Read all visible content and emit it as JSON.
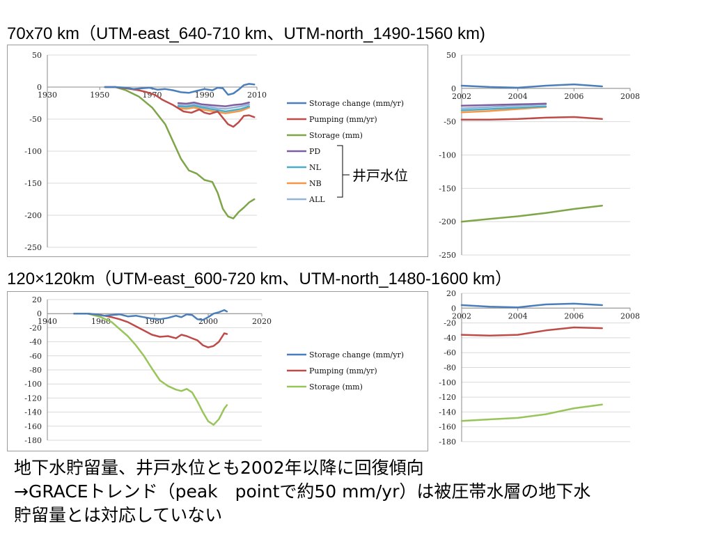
{
  "titles": {
    "top": "70x70 km（UTM-east_640-710 km、UTM-north_1490-1560 km)",
    "bottom": "120×120km（UTM-east_600-720 km、UTM-north_1480-1600 km）"
  },
  "well_label": "井戸水位",
  "summary": {
    "line1": "地下水貯留量、井戸水位とも2002年以降に回復傾向",
    "line2": "→GRACEトレンド（peak　pointで約50 mm/yr）は被圧帯水層の地下水",
    "line3": "貯留量とは対応していない"
  },
  "colors": {
    "storage_change": "#4a7ebb",
    "pumping": "#be4b48",
    "storage_top": "#7ea548",
    "storage_bottom": "#98c55a",
    "pd": "#7d5fa0",
    "nl": "#4bacc6",
    "nb": "#f79646",
    "all": "#95b3d7"
  },
  "chart_data": [
    {
      "type": "line",
      "id": "top-left",
      "xlim": [
        1930,
        2010
      ],
      "ylim": [
        -250,
        50
      ],
      "xticks": [
        1930,
        1950,
        1970,
        1990,
        2010
      ],
      "yticks": [
        50,
        0,
        -50,
        -100,
        -150,
        -200,
        -250
      ],
      "legend_position": "right",
      "series": [
        {
          "name": "Storage change (mm/yr)",
          "color": "storage_change",
          "x": [
            1952,
            1956,
            1960,
            1963,
            1966,
            1969,
            1972,
            1975,
            1978,
            1981,
            1984,
            1987,
            1990,
            1993,
            1995,
            1997,
            1999,
            2001,
            2003,
            2005,
            2007,
            2009
          ],
          "y": [
            0,
            0,
            -1,
            -3,
            -2,
            -1,
            -4,
            -3,
            -5,
            -8,
            -9,
            -6,
            -3,
            -5,
            -1,
            -2,
            -12,
            -10,
            -4,
            3,
            5,
            4
          ]
        },
        {
          "name": "Pumping (mm/yr)",
          "color": "pumping",
          "x": [
            1952,
            1956,
            1960,
            1965,
            1968,
            1971,
            1974,
            1978,
            1982,
            1985,
            1988,
            1990,
            1992,
            1995,
            1997,
            1999,
            2001,
            2003,
            2005,
            2007,
            2009
          ],
          "y": [
            0,
            0,
            -2,
            -5,
            -8,
            -12,
            -20,
            -28,
            -38,
            -40,
            -35,
            -40,
            -42,
            -38,
            -48,
            -58,
            -62,
            -55,
            -45,
            -44,
            -47
          ]
        },
        {
          "name": "Storage (mm)",
          "color": "storage_top",
          "x": [
            1952,
            1956,
            1960,
            1965,
            1970,
            1975,
            1978,
            1981,
            1984,
            1987,
            1990,
            1993,
            1995,
            1997,
            1999,
            2001,
            2003,
            2005,
            2007,
            2009
          ],
          "y": [
            0,
            0,
            -5,
            -15,
            -32,
            -58,
            -85,
            -112,
            -130,
            -135,
            -145,
            -148,
            -165,
            -190,
            -202,
            -205,
            -195,
            -188,
            -180,
            -175
          ]
        },
        {
          "name": "PD",
          "color": "pd",
          "x": [
            1980,
            1983,
            1986,
            1989,
            1992,
            1995,
            1998,
            2001,
            2004,
            2007
          ],
          "y": [
            -25,
            -26,
            -24,
            -27,
            -28,
            -29,
            -30,
            -28,
            -27,
            -24
          ]
        },
        {
          "name": "NL",
          "color": "nl",
          "x": [
            1980,
            1983,
            1986,
            1989,
            1992,
            1995,
            1998,
            2001,
            2004,
            2007
          ],
          "y": [
            -30,
            -31,
            -29,
            -32,
            -34,
            -36,
            -38,
            -36,
            -34,
            -30
          ]
        },
        {
          "name": "NB",
          "color": "nb",
          "x": [
            1980,
            1983,
            1986,
            1989,
            1992,
            1995,
            1998,
            2001,
            2004,
            2007
          ],
          "y": [
            -33,
            -34,
            -32,
            -35,
            -37,
            -39,
            -41,
            -39,
            -37,
            -32
          ]
        },
        {
          "name": "ALL",
          "color": "all",
          "x": [
            1980,
            1983,
            1986,
            1989,
            1992,
            1995,
            1998,
            2001,
            2004,
            2007
          ],
          "y": [
            -28,
            -29,
            -27,
            -30,
            -31,
            -33,
            -34,
            -32,
            -30,
            -27
          ]
        }
      ]
    },
    {
      "type": "line",
      "id": "top-right",
      "xlim": [
        2002,
        2008
      ],
      "ylim": [
        -250,
        50
      ],
      "xticks": [
        2002,
        2004,
        2006,
        2008
      ],
      "yticks": [
        50,
        0,
        -50,
        -100,
        -150,
        -200,
        -250
      ],
      "series": [
        {
          "color": "storage_change",
          "x": [
            2002,
            2003,
            2004,
            2005,
            2006,
            2007
          ],
          "y": [
            4,
            2,
            1,
            4,
            6,
            3
          ]
        },
        {
          "color": "pumping",
          "x": [
            2002,
            2003,
            2004,
            2005,
            2006,
            2007
          ],
          "y": [
            -47,
            -47,
            -46,
            -44,
            -43,
            -46
          ]
        },
        {
          "color": "storage_top",
          "x": [
            2002,
            2003,
            2004,
            2005,
            2006,
            2007
          ],
          "y": [
            -200,
            -196,
            -192,
            -187,
            -181,
            -176
          ]
        },
        {
          "color": "pd",
          "x": [
            2002,
            2003,
            2004,
            2005
          ],
          "y": [
            -26,
            -25,
            -24,
            -23
          ]
        },
        {
          "color": "nl",
          "x": [
            2002,
            2003,
            2004,
            2005
          ],
          "y": [
            -33,
            -31,
            -29,
            -27
          ]
        },
        {
          "color": "nb",
          "x": [
            2002,
            2003,
            2004,
            2005
          ],
          "y": [
            -36,
            -34,
            -31,
            -28
          ]
        },
        {
          "color": "all",
          "x": [
            2002,
            2003,
            2004,
            2005
          ],
          "y": [
            -30,
            -28,
            -26,
            -24
          ]
        }
      ]
    },
    {
      "type": "line",
      "id": "bottom-left",
      "xlim": [
        1940,
        2020
      ],
      "ylim": [
        -180,
        20
      ],
      "xticks": [
        1940,
        1960,
        1980,
        2000,
        2020
      ],
      "yticks": [
        20,
        0,
        -20,
        -40,
        -60,
        -80,
        -100,
        -120,
        -140,
        -160,
        -180
      ],
      "legend_position": "right",
      "series": [
        {
          "name": "Storage change (mm/yr)",
          "color": "storage_change",
          "x": [
            1950,
            1955,
            1958,
            1961,
            1964,
            1967,
            1970,
            1973,
            1976,
            1979,
            1982,
            1985,
            1988,
            1990,
            1992,
            1994,
            1996,
            1998,
            2000,
            2002,
            2004,
            2006,
            2007
          ],
          "y": [
            0,
            0,
            -1,
            -3,
            -2,
            -1,
            -4,
            -3,
            -5,
            -7,
            -8,
            -6,
            -3,
            -5,
            -1,
            -2,
            -8,
            -9,
            -5,
            0,
            2,
            5,
            3
          ]
        },
        {
          "name": "Pumping (mm/yr)",
          "color": "pumping",
          "x": [
            1950,
            1955,
            1960,
            1964,
            1967,
            1970,
            1973,
            1976,
            1979,
            1982,
            1985,
            1988,
            1990,
            1992,
            1994,
            1996,
            1998,
            2000,
            2002,
            2004,
            2006,
            2007
          ],
          "y": [
            0,
            0,
            -2,
            -5,
            -8,
            -12,
            -18,
            -24,
            -30,
            -33,
            -32,
            -35,
            -30,
            -32,
            -35,
            -38,
            -45,
            -48,
            -46,
            -40,
            -28,
            -29
          ]
        },
        {
          "name": "Storage (mm)",
          "color": "storage_bottom",
          "x": [
            1950,
            1955,
            1960,
            1964,
            1967,
            1970,
            1973,
            1976,
            1979,
            1982,
            1985,
            1988,
            1990,
            1992,
            1994,
            1996,
            1998,
            2000,
            2002,
            2004,
            2006,
            2007
          ],
          "y": [
            0,
            0,
            -5,
            -12,
            -22,
            -32,
            -45,
            -60,
            -78,
            -95,
            -103,
            -108,
            -110,
            -107,
            -112,
            -125,
            -140,
            -153,
            -158,
            -150,
            -135,
            -130
          ]
        }
      ]
    },
    {
      "type": "line",
      "id": "bottom-right",
      "xlim": [
        2002,
        2008
      ],
      "ylim": [
        -180,
        20
      ],
      "xticks": [
        2002,
        2004,
        2006,
        2008
      ],
      "yticks": [
        20,
        0,
        -20,
        -40,
        -60,
        -80,
        -100,
        -120,
        -140,
        -160,
        -180
      ],
      "series": [
        {
          "color": "storage_change",
          "x": [
            2002,
            2003,
            2004,
            2005,
            2006,
            2007
          ],
          "y": [
            4,
            2,
            1,
            5,
            6,
            4
          ]
        },
        {
          "color": "pumping",
          "x": [
            2002,
            2003,
            2004,
            2005,
            2006,
            2007
          ],
          "y": [
            -36,
            -37,
            -36,
            -30,
            -26,
            -27
          ]
        },
        {
          "color": "storage_bottom",
          "x": [
            2002,
            2003,
            2004,
            2005,
            2006,
            2007
          ],
          "y": [
            -152,
            -150,
            -148,
            -143,
            -135,
            -130
          ]
        }
      ]
    }
  ]
}
